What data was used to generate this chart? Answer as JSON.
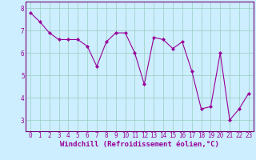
{
  "x": [
    0,
    1,
    2,
    3,
    4,
    5,
    6,
    7,
    8,
    9,
    10,
    11,
    12,
    13,
    14,
    15,
    16,
    17,
    18,
    19,
    20,
    21,
    22,
    23
  ],
  "y": [
    7.8,
    7.4,
    6.9,
    6.6,
    6.6,
    6.6,
    6.3,
    5.4,
    6.5,
    6.9,
    6.9,
    6.0,
    4.6,
    6.7,
    6.6,
    6.2,
    6.5,
    5.2,
    3.5,
    3.6,
    6.0,
    3.0,
    3.5,
    4.2
  ],
  "ylim": [
    2.5,
    8.3
  ],
  "xlim": [
    -0.5,
    23.5
  ],
  "yticks": [
    3,
    4,
    5,
    6,
    7,
    8
  ],
  "xticks": [
    0,
    1,
    2,
    3,
    4,
    5,
    6,
    7,
    8,
    9,
    10,
    11,
    12,
    13,
    14,
    15,
    16,
    17,
    18,
    19,
    20,
    21,
    22,
    23
  ],
  "line_color": "#990099",
  "marker": "D",
  "marker_size": 2.0,
  "bg_color": "#cceeff",
  "grid_color": "#99ccbb",
  "xlabel": "Windchill (Refroidissement éolien,°C)",
  "xlabel_color": "#990099",
  "tick_color": "#990099",
  "label_fontsize": 6.5,
  "tick_fontsize": 5.5,
  "spine_color": "#770077"
}
